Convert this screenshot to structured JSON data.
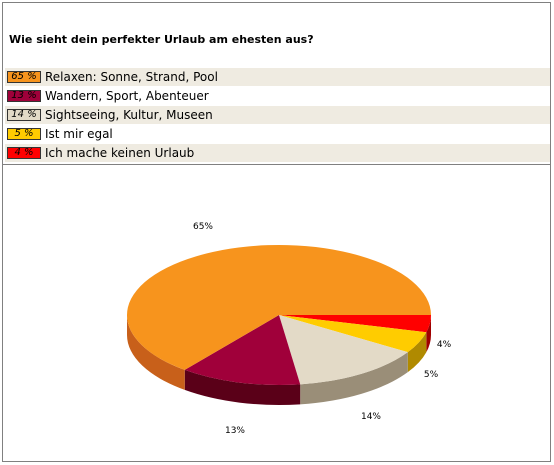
{
  "poll": {
    "question": "Wie sieht dein perfekter Urlaub am ehesten aus?"
  },
  "chart_data": {
    "type": "pie",
    "title": "Wie sieht dein perfekter Urlaub am ehesten aus?",
    "slices": [
      {
        "label": "Relaxen: Sonne, Strand, Pool",
        "value": 65,
        "pct_label": "65 %",
        "chart_label": "65%",
        "color": "#f7941d",
        "side": "#c8601a"
      },
      {
        "label": "Wandern, Sport, Abenteuer",
        "value": 13,
        "pct_label": "13 %",
        "chart_label": "13%",
        "color": "#a0003a",
        "side": "#5a0018"
      },
      {
        "label": "Sightseeing, Kultur, Museen",
        "value": 14,
        "pct_label": "14 %",
        "chart_label": "14%",
        "color": "#e3dac7",
        "side": "#9a8e78"
      },
      {
        "label": "Ist mir egal",
        "value": 5,
        "pct_label": "5 %",
        "chart_label": "5%",
        "color": "#ffcc00",
        "side": "#b08a00"
      },
      {
        "label": "Ich mache keinen Urlaub",
        "value": 4,
        "pct_label": "4 %",
        "chart_label": "4%",
        "color": "#ff0000",
        "side": "#a00000"
      }
    ]
  }
}
